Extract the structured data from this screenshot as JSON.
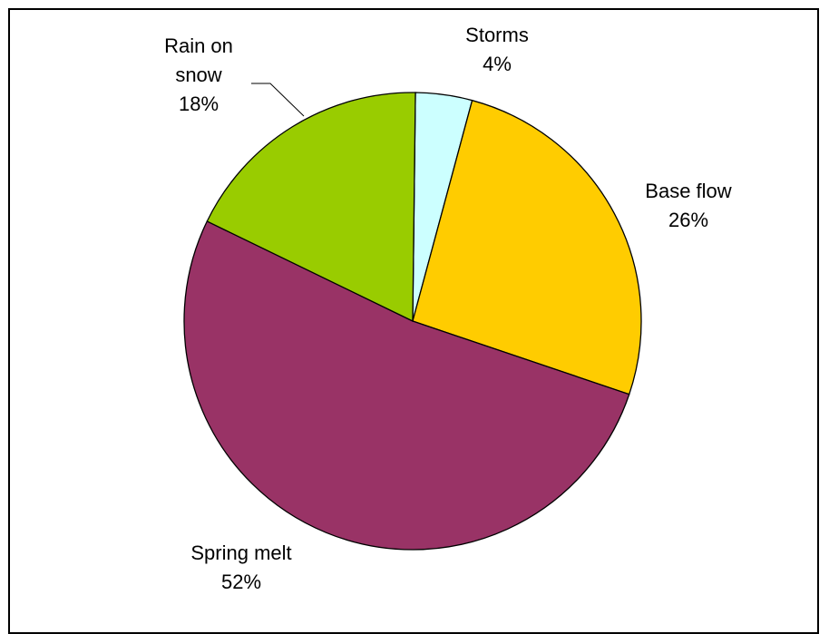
{
  "chart_data": {
    "type": "pie",
    "slices": [
      {
        "name": "Storms",
        "value": 4,
        "label": "4%",
        "color": "#CCFFFF"
      },
      {
        "name": "Base flow",
        "value": 26,
        "label": "26%",
        "color": "#FFCC00"
      },
      {
        "name": "Spring melt",
        "value": 52,
        "label": "52%",
        "color": "#993366"
      },
      {
        "name": "Rain on snow",
        "value": 18,
        "label": "18%",
        "color": "#99CC00"
      }
    ],
    "legend": "none"
  }
}
